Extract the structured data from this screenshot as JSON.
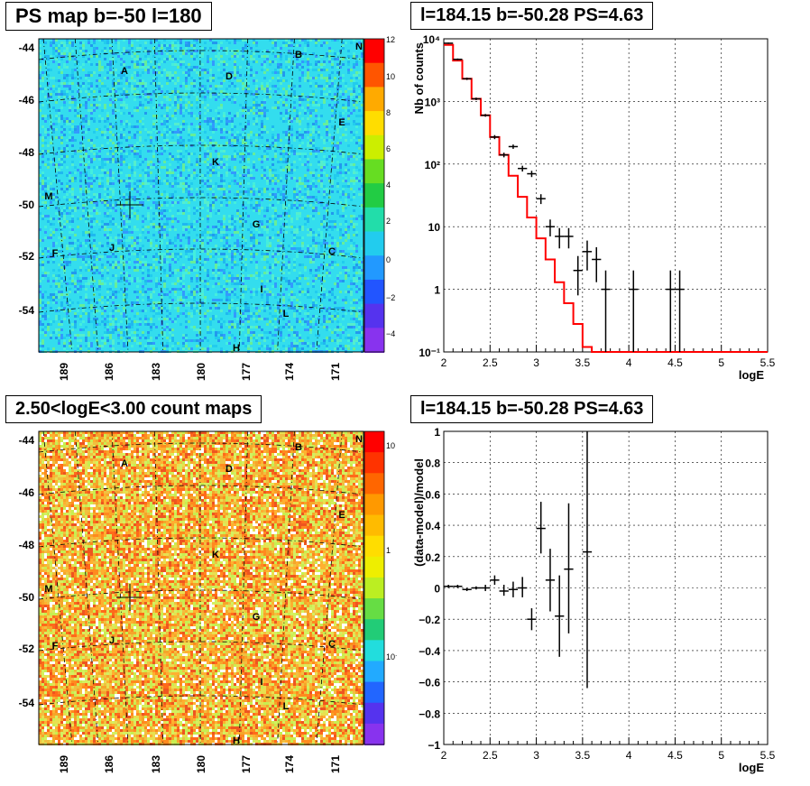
{
  "panels": {
    "top_left_title": "PS map b=-50 l=180",
    "top_right_title": "l=184.15 b=-50.28 PS=4.63",
    "bottom_left_title": "2.50<logE<3.00 count maps",
    "bottom_right_title": "l=184.15 b=-50.28 PS=4.63"
  },
  "maps": {
    "x_ticks": [
      "189",
      "186",
      "183",
      "180",
      "177",
      "174",
      "171"
    ],
    "y_ticks": [
      "-44",
      "-46",
      "-48",
      "-50",
      "-52",
      "-54"
    ],
    "source_labels": [
      "A",
      "B",
      "C",
      "D",
      "E",
      "F",
      "G",
      "H",
      "I",
      "J",
      "K",
      "L",
      "M",
      "N"
    ],
    "ps_colorbar_ticks": [
      "12",
      "10",
      "8",
      "6",
      "4",
      "2",
      "0",
      "−2",
      "−4"
    ],
    "count_colorbar_ticks": [
      "10",
      "1",
      "10⁻¹"
    ],
    "colors": {
      "ps_background": "#33ddee",
      "count_background": "#f0a830"
    }
  },
  "chart_data": [
    {
      "type": "line",
      "panel": "top-right",
      "title": "l=184.15 b=-50.28 PS=4.63",
      "xlabel": "logE",
      "ylabel": "Nb of counts",
      "xlim": [
        2,
        5.5
      ],
      "ylim": [
        0.1,
        10000
      ],
      "log_y": true,
      "grid": true,
      "x_tick_labels": [
        "2",
        "2.5",
        "3",
        "3.5",
        "4",
        "4.5",
        "5",
        "5.5"
      ],
      "y_tick_labels": [
        "10⁻¹",
        "1",
        "10",
        "10²",
        "10³",
        "10⁴"
      ],
      "series": [
        {
          "style": "step",
          "color": "#ff0000",
          "edges": [
            2.0,
            2.1,
            2.2,
            2.3,
            2.4,
            2.5,
            2.6,
            2.7,
            2.8,
            2.9,
            3.0,
            3.1,
            3.2,
            3.3,
            3.4,
            3.5,
            3.6,
            3.7,
            3.8,
            3.9,
            4.0,
            4.1,
            4.2,
            4.3,
            4.4,
            4.5,
            4.6,
            4.7,
            4.8,
            4.9,
            5.0,
            5.1,
            5.2,
            5.3,
            5.4,
            5.5
          ],
          "values": [
            8000,
            4500,
            2300,
            1100,
            600,
            270,
            140,
            65,
            30,
            14,
            6.5,
            3,
            1.3,
            0.6,
            0.28,
            0.12,
            0.1,
            0.1,
            0.1,
            0.1,
            0.1,
            0.1,
            0.1,
            0.1,
            0.1,
            0.1,
            0.1,
            0.1,
            0.1,
            0.1,
            0.1,
            0.1,
            0.1,
            0.1,
            0.1
          ]
        },
        {
          "style": "errorbar",
          "color": "#000000",
          "points": [
            {
              "x": 2.05,
              "y": 8500,
              "lo": 8300,
              "hi": 8700
            },
            {
              "x": 2.15,
              "y": 4700,
              "lo": 4550,
              "hi": 4850
            },
            {
              "x": 2.25,
              "y": 2300,
              "lo": 2200,
              "hi": 2400
            },
            {
              "x": 2.35,
              "y": 1100,
              "lo": 1050,
              "hi": 1150
            },
            {
              "x": 2.45,
              "y": 600,
              "lo": 570,
              "hi": 630
            },
            {
              "x": 2.55,
              "y": 270,
              "lo": 250,
              "hi": 290
            },
            {
              "x": 2.65,
              "y": 140,
              "lo": 128,
              "hi": 152
            },
            {
              "x": 2.75,
              "y": 190,
              "lo": 175,
              "hi": 205
            },
            {
              "x": 2.85,
              "y": 85,
              "lo": 76,
              "hi": 94
            },
            {
              "x": 2.95,
              "y": 70,
              "lo": 62,
              "hi": 78
            },
            {
              "x": 3.05,
              "y": 28,
              "lo": 23,
              "hi": 33
            },
            {
              "x": 3.15,
              "y": 10,
              "lo": 7,
              "hi": 13
            },
            {
              "x": 3.25,
              "y": 7,
              "lo": 4.5,
              "hi": 9.5
            },
            {
              "x": 3.35,
              "y": 7,
              "lo": 4.5,
              "hi": 9.5
            },
            {
              "x": 3.45,
              "y": 2,
              "lo": 0.8,
              "hi": 3.4
            },
            {
              "x": 3.55,
              "y": 4,
              "lo": 2,
              "hi": 6
            },
            {
              "x": 3.65,
              "y": 3,
              "lo": 1.3,
              "hi": 4.7
            },
            {
              "x": 3.75,
              "y": 1,
              "lo": 0.1,
              "hi": 2
            },
            {
              "x": 4.05,
              "y": 1,
              "lo": 0.1,
              "hi": 2
            },
            {
              "x": 4.45,
              "y": 1,
              "lo": 0.1,
              "hi": 2
            },
            {
              "x": 4.55,
              "y": 1,
              "lo": 0.1,
              "hi": 2
            }
          ]
        }
      ]
    },
    {
      "type": "scatter",
      "panel": "bottom-right",
      "title": "l=184.15 b=-50.28 PS=4.63",
      "xlabel": "logE",
      "ylabel": "(data-model)/model",
      "xlim": [
        2,
        5.5
      ],
      "ylim": [
        -1,
        1
      ],
      "grid": true,
      "x_tick_labels": [
        "2",
        "2.5",
        "3",
        "3.5",
        "4",
        "4.5",
        "5",
        "5.5"
      ],
      "y_tick_labels": [
        "−1",
        "−0.8",
        "−0.6",
        "−0.4",
        "−0.2",
        "0",
        "0.2",
        "0.4",
        "0.6",
        "0.8",
        "1"
      ],
      "series": [
        {
          "style": "errorbar",
          "color": "#000000",
          "points": [
            {
              "x": 2.05,
              "y": 0.01,
              "lo": 0.0,
              "hi": 0.02
            },
            {
              "x": 2.15,
              "y": 0.01,
              "lo": 0.0,
              "hi": 0.02
            },
            {
              "x": 2.25,
              "y": -0.01,
              "lo": -0.02,
              "hi": 0.0
            },
            {
              "x": 2.35,
              "y": 0.0,
              "lo": -0.01,
              "hi": 0.01
            },
            {
              "x": 2.45,
              "y": 0.0,
              "lo": -0.02,
              "hi": 0.02
            },
            {
              "x": 2.55,
              "y": 0.05,
              "lo": 0.02,
              "hi": 0.08
            },
            {
              "x": 2.65,
              "y": -0.02,
              "lo": -0.05,
              "hi": 0.02
            },
            {
              "x": 2.75,
              "y": -0.01,
              "lo": -0.06,
              "hi": 0.04
            },
            {
              "x": 2.85,
              "y": 0.0,
              "lo": -0.06,
              "hi": 0.07
            },
            {
              "x": 2.95,
              "y": -0.2,
              "lo": -0.27,
              "hi": -0.13
            },
            {
              "x": 3.05,
              "y": 0.38,
              "lo": 0.22,
              "hi": 0.55
            },
            {
              "x": 3.15,
              "y": 0.05,
              "lo": -0.15,
              "hi": 0.25
            },
            {
              "x": 3.25,
              "y": -0.18,
              "lo": -0.44,
              "hi": 0.08
            },
            {
              "x": 3.35,
              "y": 0.12,
              "lo": -0.29,
              "hi": 0.54
            },
            {
              "x": 3.55,
              "y": 0.23,
              "lo": -0.64,
              "hi": 1.0
            }
          ]
        }
      ]
    }
  ]
}
